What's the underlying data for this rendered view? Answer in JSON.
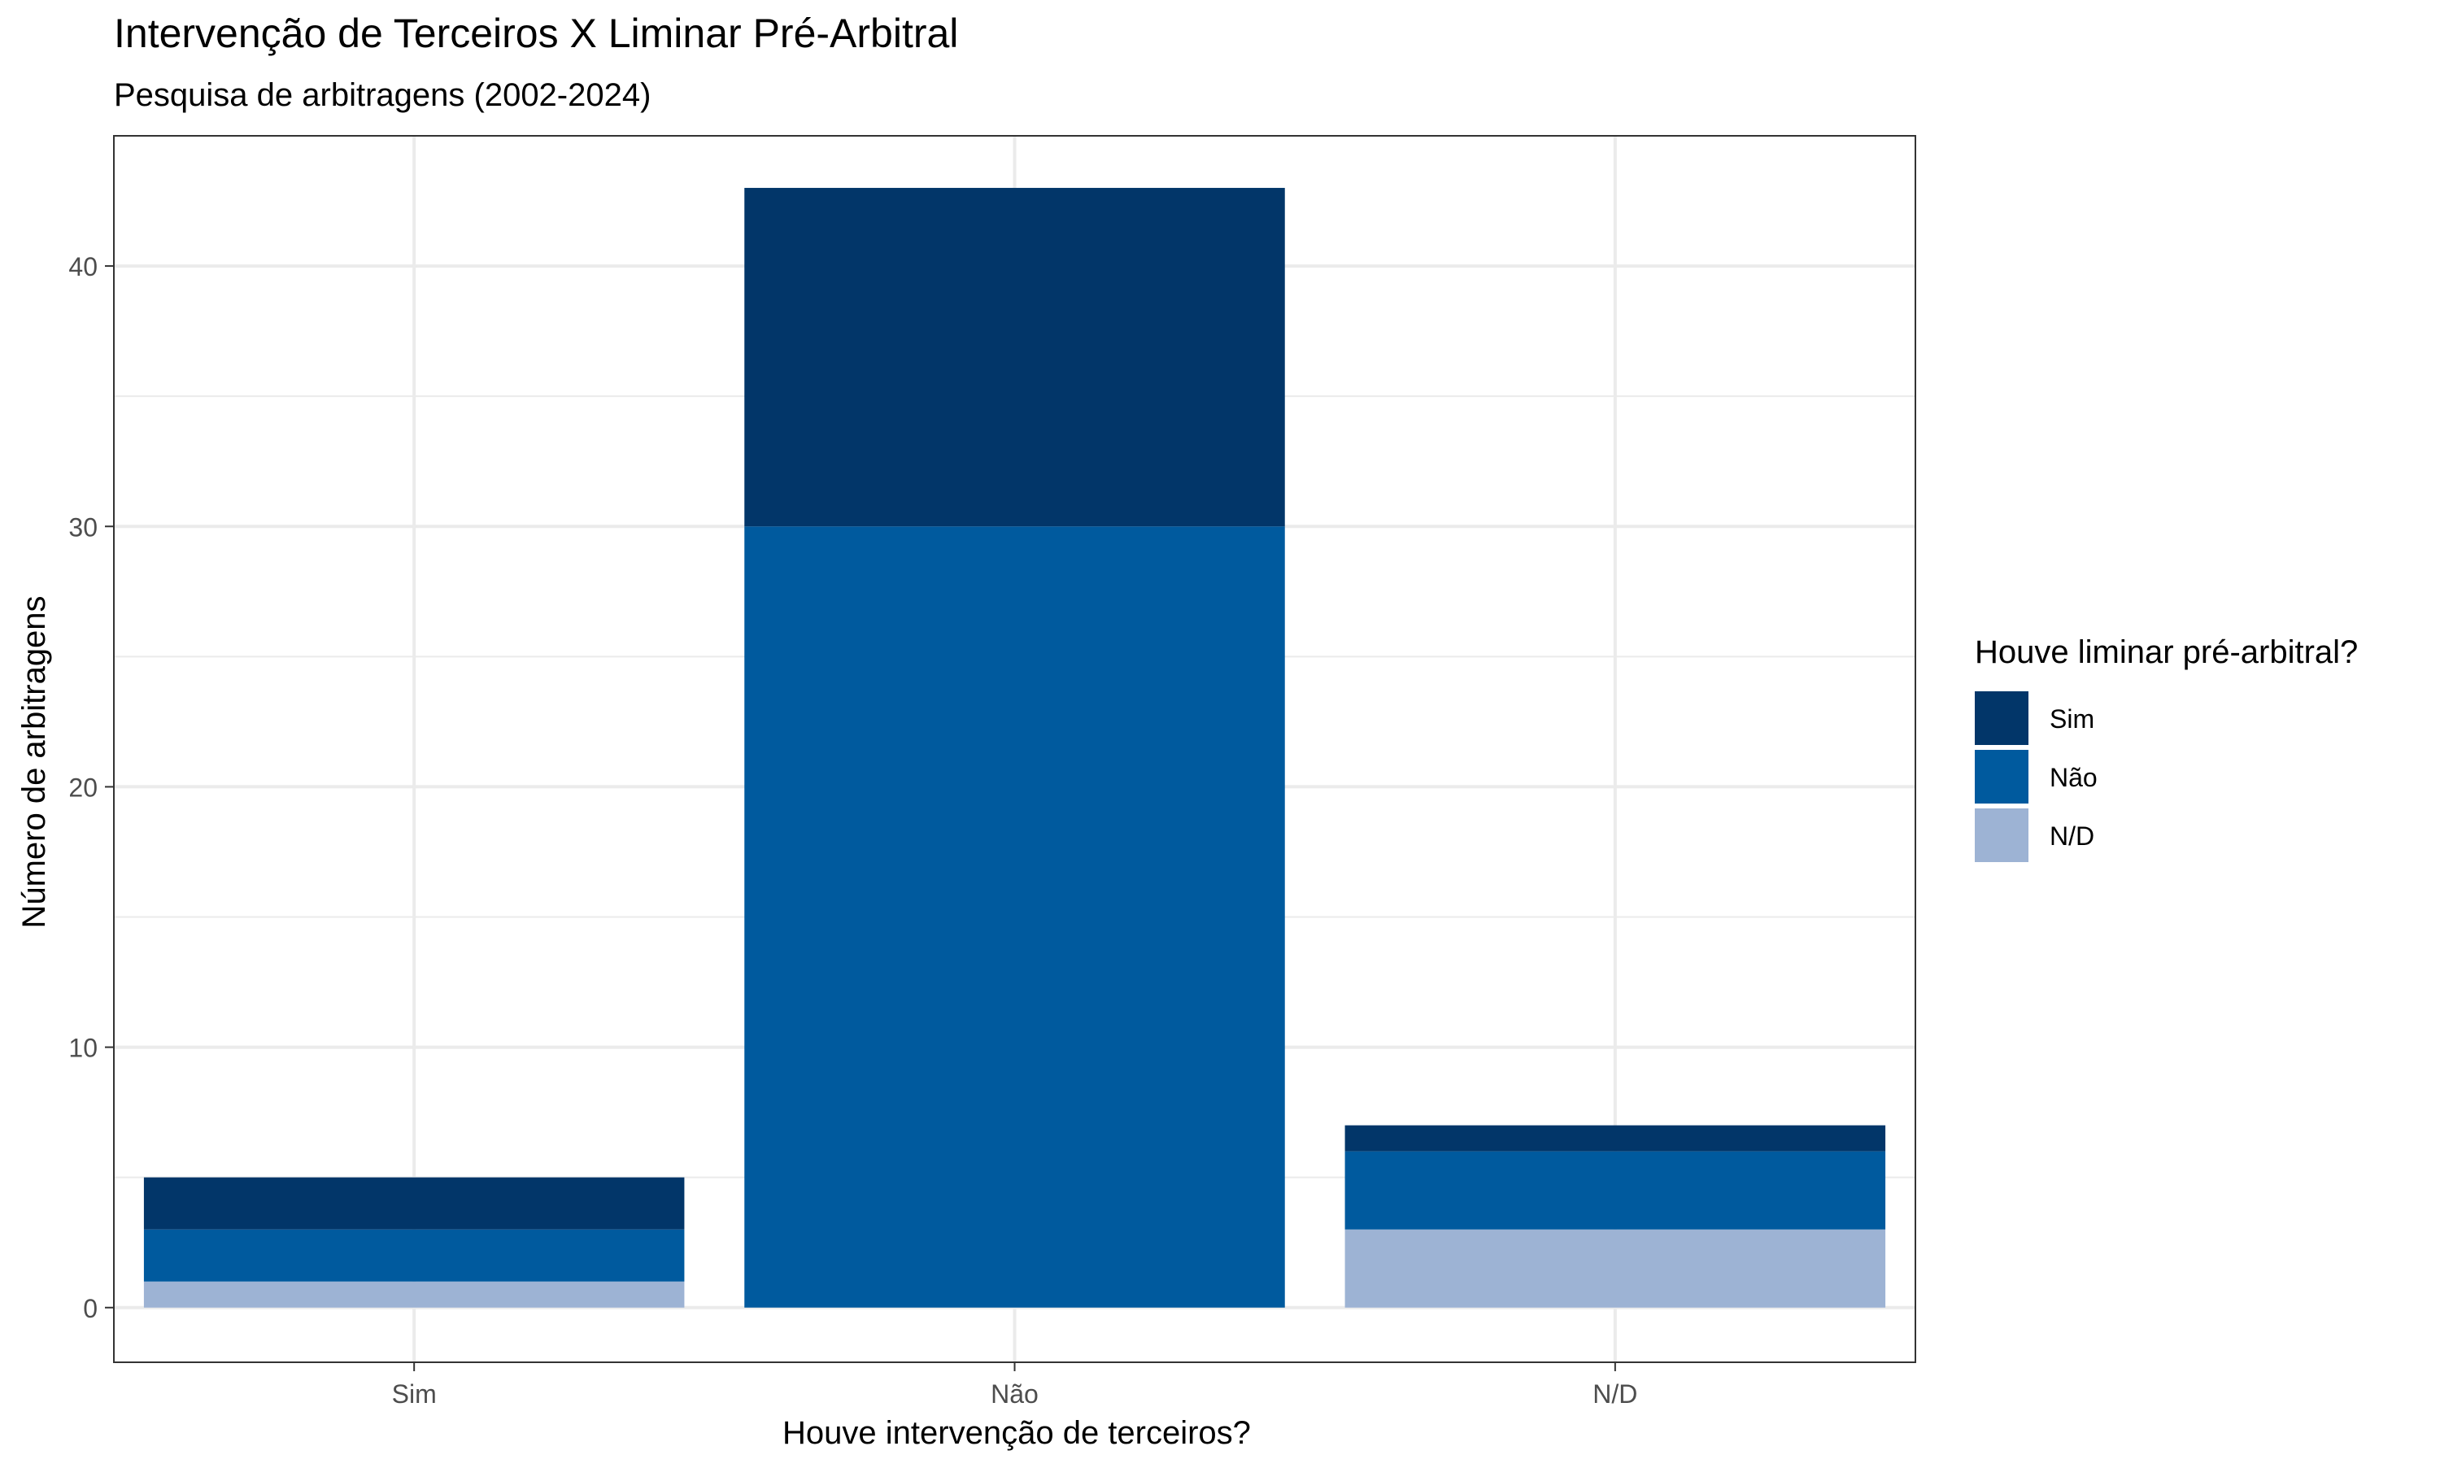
{
  "chart_data": {
    "type": "bar",
    "stacked": true,
    "title": "Intervenção de Terceiros X Liminar Pré-Arbitral",
    "subtitle": "Pesquisa de arbitragens (2002-2024)",
    "xlabel": "Houve intervenção de terceiros?",
    "ylabel": "Número de arbitragens",
    "categories": [
      "Sim",
      "Não",
      "N/D"
    ],
    "series": [
      {
        "name": "N/D",
        "color": "#9db3d4",
        "values": [
          1,
          0,
          3
        ]
      },
      {
        "name": "Não",
        "color": "#005a9e",
        "values": [
          2,
          30,
          3
        ]
      },
      {
        "name": "Sim",
        "color": "#023669",
        "values": [
          2,
          13,
          1
        ]
      }
    ],
    "ylim": [
      -2.1,
      45
    ],
    "yticks": [
      0,
      10,
      20,
      30,
      40
    ],
    "grid": true,
    "legend": {
      "title": "Houve liminar pré-arbitral?",
      "position": "right",
      "items": [
        {
          "label": "Sim",
          "color": "#023669"
        },
        {
          "label": "Não",
          "color": "#005a9e"
        },
        {
          "label": "N/D",
          "color": "#9db3d4"
        }
      ]
    }
  }
}
